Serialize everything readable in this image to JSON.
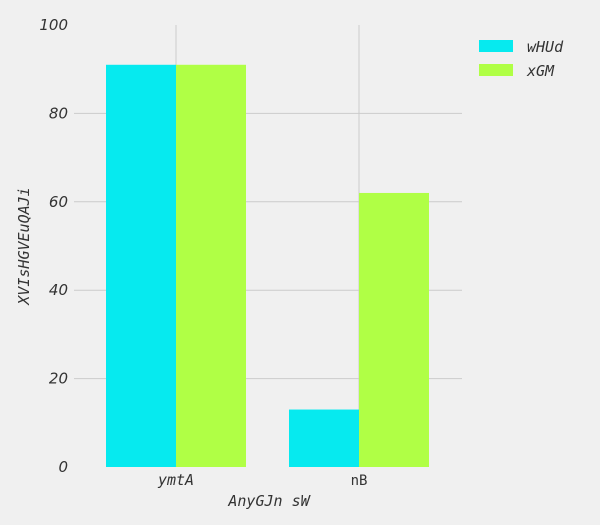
{
  "chart_data": {
    "type": "bar",
    "categories": [
      "ymtA",
      "nB"
    ],
    "category_styles": [
      "italic",
      "normal"
    ],
    "series": [
      {
        "name": "wHUd",
        "values": [
          91,
          13
        ],
        "color": "#06eaef"
      },
      {
        "name": "xGM",
        "values": [
          91,
          62
        ],
        "color": "#b0ff45"
      }
    ],
    "xlabel": "AnyGJn  sW",
    "ylabel": "XVIsHGVEuQAJi",
    "ylim": [
      0,
      100
    ],
    "yticks": [
      0,
      20,
      40,
      60,
      80,
      100
    ],
    "grid": true,
    "legend_position": "top-right"
  }
}
